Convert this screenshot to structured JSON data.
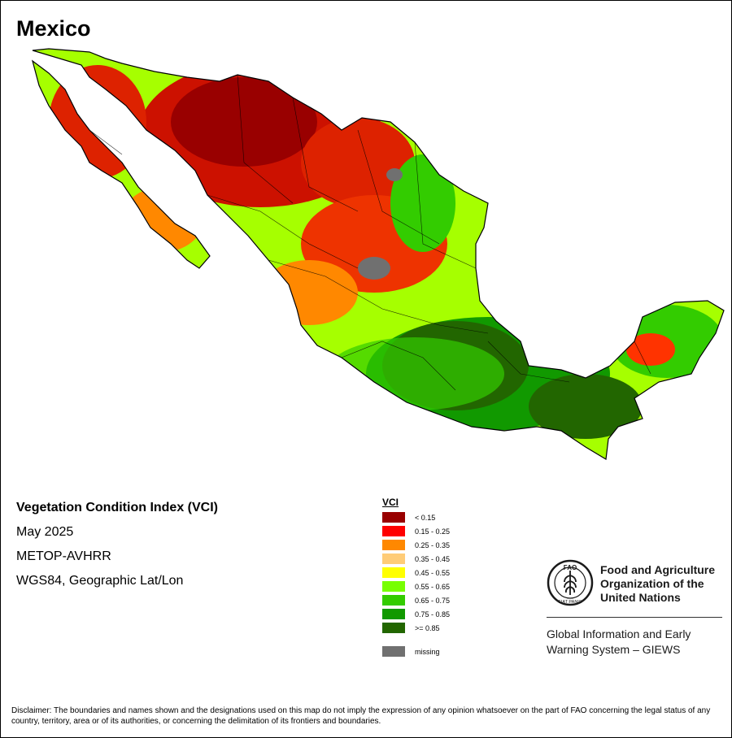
{
  "map": {
    "title": "Mexico",
    "colors": {
      "lt015": "#990000",
      "r015_025": "#ff0000",
      "r025_035": "#ff8800",
      "r035_045": "#ffcc77",
      "r045_055": "#ffff00",
      "r055_065": "#77ff00",
      "r065_075": "#33cc00",
      "r075_085": "#119900",
      "ge085": "#226600",
      "missing": "#707070",
      "boundary": "#000000"
    }
  },
  "info": {
    "title": "Vegetation Condition Index (VCI)",
    "period": "May 2025",
    "sensor": "METOP-AVHRR",
    "projection": "WGS84, Geographic Lat/Lon"
  },
  "legend": {
    "title": "VCI",
    "items": [
      {
        "label": "< 0.15",
        "color": "#990000"
      },
      {
        "label": "0.15 - 0.25",
        "color": "#ff0000"
      },
      {
        "label": "0.25 - 0.35",
        "color": "#ff8800"
      },
      {
        "label": "0.35 - 0.45",
        "color": "#ffcc77"
      },
      {
        "label": "0.45 - 0.55",
        "color": "#ffff00"
      },
      {
        "label": "0.55 - 0.65",
        "color": "#77ff00"
      },
      {
        "label": "0.65 - 0.75",
        "color": "#33cc00"
      },
      {
        "label": "0.75 - 0.85",
        "color": "#119900"
      },
      {
        "label": ">= 0.85",
        "color": "#226600"
      }
    ],
    "missing": {
      "label": "missing",
      "color": "#707070"
    }
  },
  "fao": {
    "logo_icon": "fao-emblem-icon",
    "logo_text_top": "FAO",
    "logo_text_ring": "FIAT PANIS",
    "name_line1": "Food and Agriculture",
    "name_line2": "Organization of the",
    "name_line3": "United Nations",
    "giews_line1": "Global Information and Early",
    "giews_line2": "Warning System – GIEWS"
  },
  "disclaimer": "Disclaimer: The boundaries and names shown and the designations used on this map do not imply the expression of any opinion whatsoever on the part of FAO concerning the legal status of any country, territory, area or of its authorities, or concerning the delimitation of its frontiers and boundaries."
}
